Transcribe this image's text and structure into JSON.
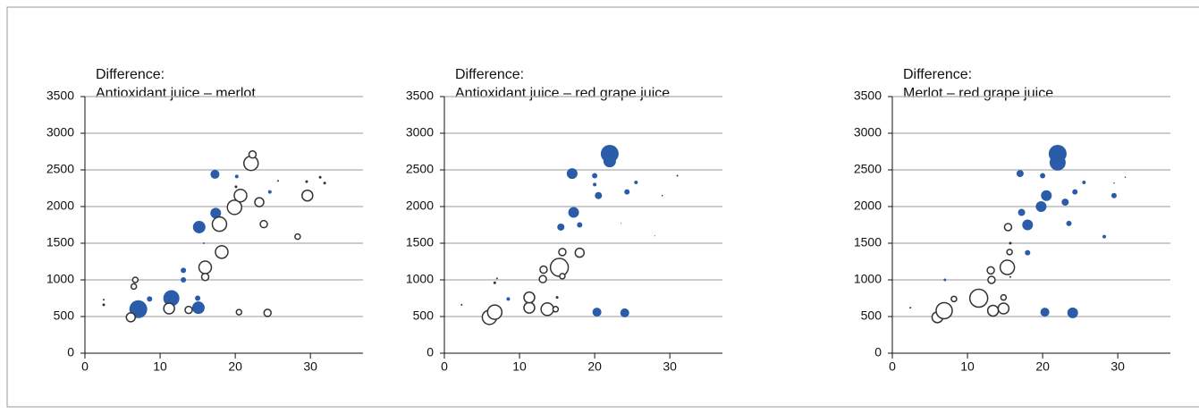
{
  "chart_data": [
    {
      "type": "scatter",
      "title": "Difference:",
      "subtitle": "Antioxidant juice – merlot",
      "xlim": [
        0,
        37
      ],
      "ylim": [
        0,
        3500
      ],
      "xticks": [
        0,
        10,
        20,
        30
      ],
      "yticks": [
        0,
        500,
        1000,
        1500,
        2000,
        2500,
        3000,
        3500
      ],
      "grid": true,
      "series": [
        {
          "color": "#2a5caa",
          "filled": true,
          "x": [
            7.1,
            11.5,
            15.1,
            15,
            8.6,
            13.1,
            13.1,
            15.2,
            17.4,
            17.3,
            20.2,
            24.6,
            15.8
          ],
          "values": [
            600,
            750,
            620,
            750,
            740,
            1000,
            1130,
            1720,
            1910,
            2440,
            2410,
            2200,
            1500
          ],
          "sizes": [
            10,
            9,
            7,
            3,
            3,
            3,
            3,
            7,
            6,
            5,
            2,
            2,
            1
          ]
        },
        {
          "color": "#333333",
          "filled": false,
          "x": [
            6.1,
            11.2,
            13.8,
            16,
            16,
            18.2,
            17.9,
            19.9,
            20.7,
            22.1,
            22.3,
            23.2,
            23.8,
            28.3,
            29.6,
            20.5,
            24.3,
            6.7,
            6.5
          ],
          "values": [
            490,
            610,
            590,
            1170,
            1040,
            1380,
            1760,
            1990,
            2150,
            2590,
            2710,
            2060,
            1760,
            1590,
            2150,
            560,
            550,
            1000,
            910
          ],
          "sizes": [
            5,
            6,
            4,
            7,
            4,
            7,
            8,
            8,
            7,
            8,
            4,
            5,
            4,
            3,
            6,
            3,
            4,
            3,
            3
          ]
        },
        {
          "color": "#333333",
          "filled": true,
          "x": [
            2.5,
            2.5,
            29.5,
            31.3,
            31.9,
            20.1,
            25.7
          ],
          "values": [
            660,
            730,
            2340,
            2400,
            2320,
            2270,
            2350
          ],
          "sizes": [
            1.5,
            1,
            1.5,
            1.5,
            1.5,
            1.5,
            1
          ]
        }
      ]
    },
    {
      "type": "scatter",
      "title": "Difference:",
      "subtitle": "Antioxidant juice – red grape juice",
      "xlim": [
        0,
        37
      ],
      "ylim": [
        0,
        3500
      ],
      "xticks": [
        0,
        10,
        20,
        30
      ],
      "yticks": [
        0,
        500,
        1000,
        1500,
        2000,
        2500,
        3000,
        3500
      ],
      "grid": true,
      "series": [
        {
          "color": "#2a5caa",
          "filled": true,
          "x": [
            22,
            22,
            17,
            17.2,
            20.5,
            20,
            24.3,
            25.5,
            15.5,
            18,
            20.3,
            24,
            8.5,
            20
          ],
          "values": [
            2720,
            2620,
            2450,
            1920,
            2150,
            2420,
            2200,
            2330,
            1720,
            1750,
            560,
            550,
            740,
            2300
          ],
          "sizes": [
            10,
            7,
            6,
            6,
            4,
            3,
            3,
            2,
            4,
            3,
            5,
            5,
            2,
            2
          ]
        },
        {
          "color": "#333333",
          "filled": false,
          "x": [
            6,
            6.7,
            11.3,
            11.3,
            13.7,
            15.3,
            15.7,
            18,
            13.2,
            13.1,
            15.7,
            14.8
          ],
          "values": [
            490,
            560,
            620,
            760,
            600,
            1170,
            1380,
            1370,
            1140,
            1010,
            1050,
            600
          ],
          "sizes": [
            8,
            8,
            6,
            6,
            7,
            10,
            4,
            5,
            4,
            4,
            3,
            3
          ]
        },
        {
          "color": "#333333",
          "filled": true,
          "x": [
            2.3,
            6.7,
            7,
            15,
            31,
            29,
            23.5,
            28
          ],
          "values": [
            660,
            960,
            1020,
            760,
            2420,
            2150,
            1770,
            1600
          ],
          "sizes": [
            1,
            1.5,
            1,
            1.5,
            1,
            0.8,
            0.5,
            0.5
          ]
        }
      ]
    },
    {
      "type": "scatter",
      "title": "Difference:",
      "subtitle": "Merlot – red grape juice",
      "xlim": [
        0,
        37
      ],
      "ylim": [
        0,
        3500
      ],
      "xticks": [
        0,
        10,
        20,
        30
      ],
      "yticks": [
        0,
        500,
        1000,
        1500,
        2000,
        2500,
        3000,
        3500
      ],
      "grid": true,
      "series": [
        {
          "color": "#2a5caa",
          "filled": true,
          "x": [
            22,
            22,
            17,
            20.5,
            19.8,
            17.2,
            18,
            20,
            24.3,
            23,
            23.5,
            28.2,
            29.5,
            18,
            20.3,
            24,
            25.5,
            7
          ],
          "values": [
            2720,
            2600,
            2450,
            2150,
            2000,
            1920,
            1750,
            2420,
            2200,
            2060,
            1770,
            1590,
            2150,
            1370,
            560,
            550,
            2330,
            1000
          ],
          "sizes": [
            10,
            9,
            4,
            6,
            6,
            4,
            6,
            3,
            3,
            4,
            3,
            2,
            3,
            3,
            5,
            6,
            2,
            1.5
          ]
        },
        {
          "color": "#333333",
          "filled": false,
          "x": [
            6,
            6.9,
            11.5,
            13.4,
            14.8,
            15.3,
            13.1,
            13.2,
            15.4,
            15.6,
            14.8,
            8.2
          ],
          "values": [
            490,
            580,
            750,
            580,
            610,
            1170,
            1130,
            1000,
            1720,
            1380,
            760,
            740
          ],
          "sizes": [
            6,
            9,
            10,
            6,
            6,
            8,
            4,
            4,
            4,
            3,
            3,
            3
          ]
        },
        {
          "color": "#333333",
          "filled": true,
          "x": [
            2.4,
            15.7,
            15.7,
            31,
            29.5
          ],
          "values": [
            620,
            1500,
            1040,
            2400,
            2320
          ],
          "sizes": [
            1,
            1.5,
            1,
            0.7,
            0.7
          ]
        }
      ]
    }
  ]
}
